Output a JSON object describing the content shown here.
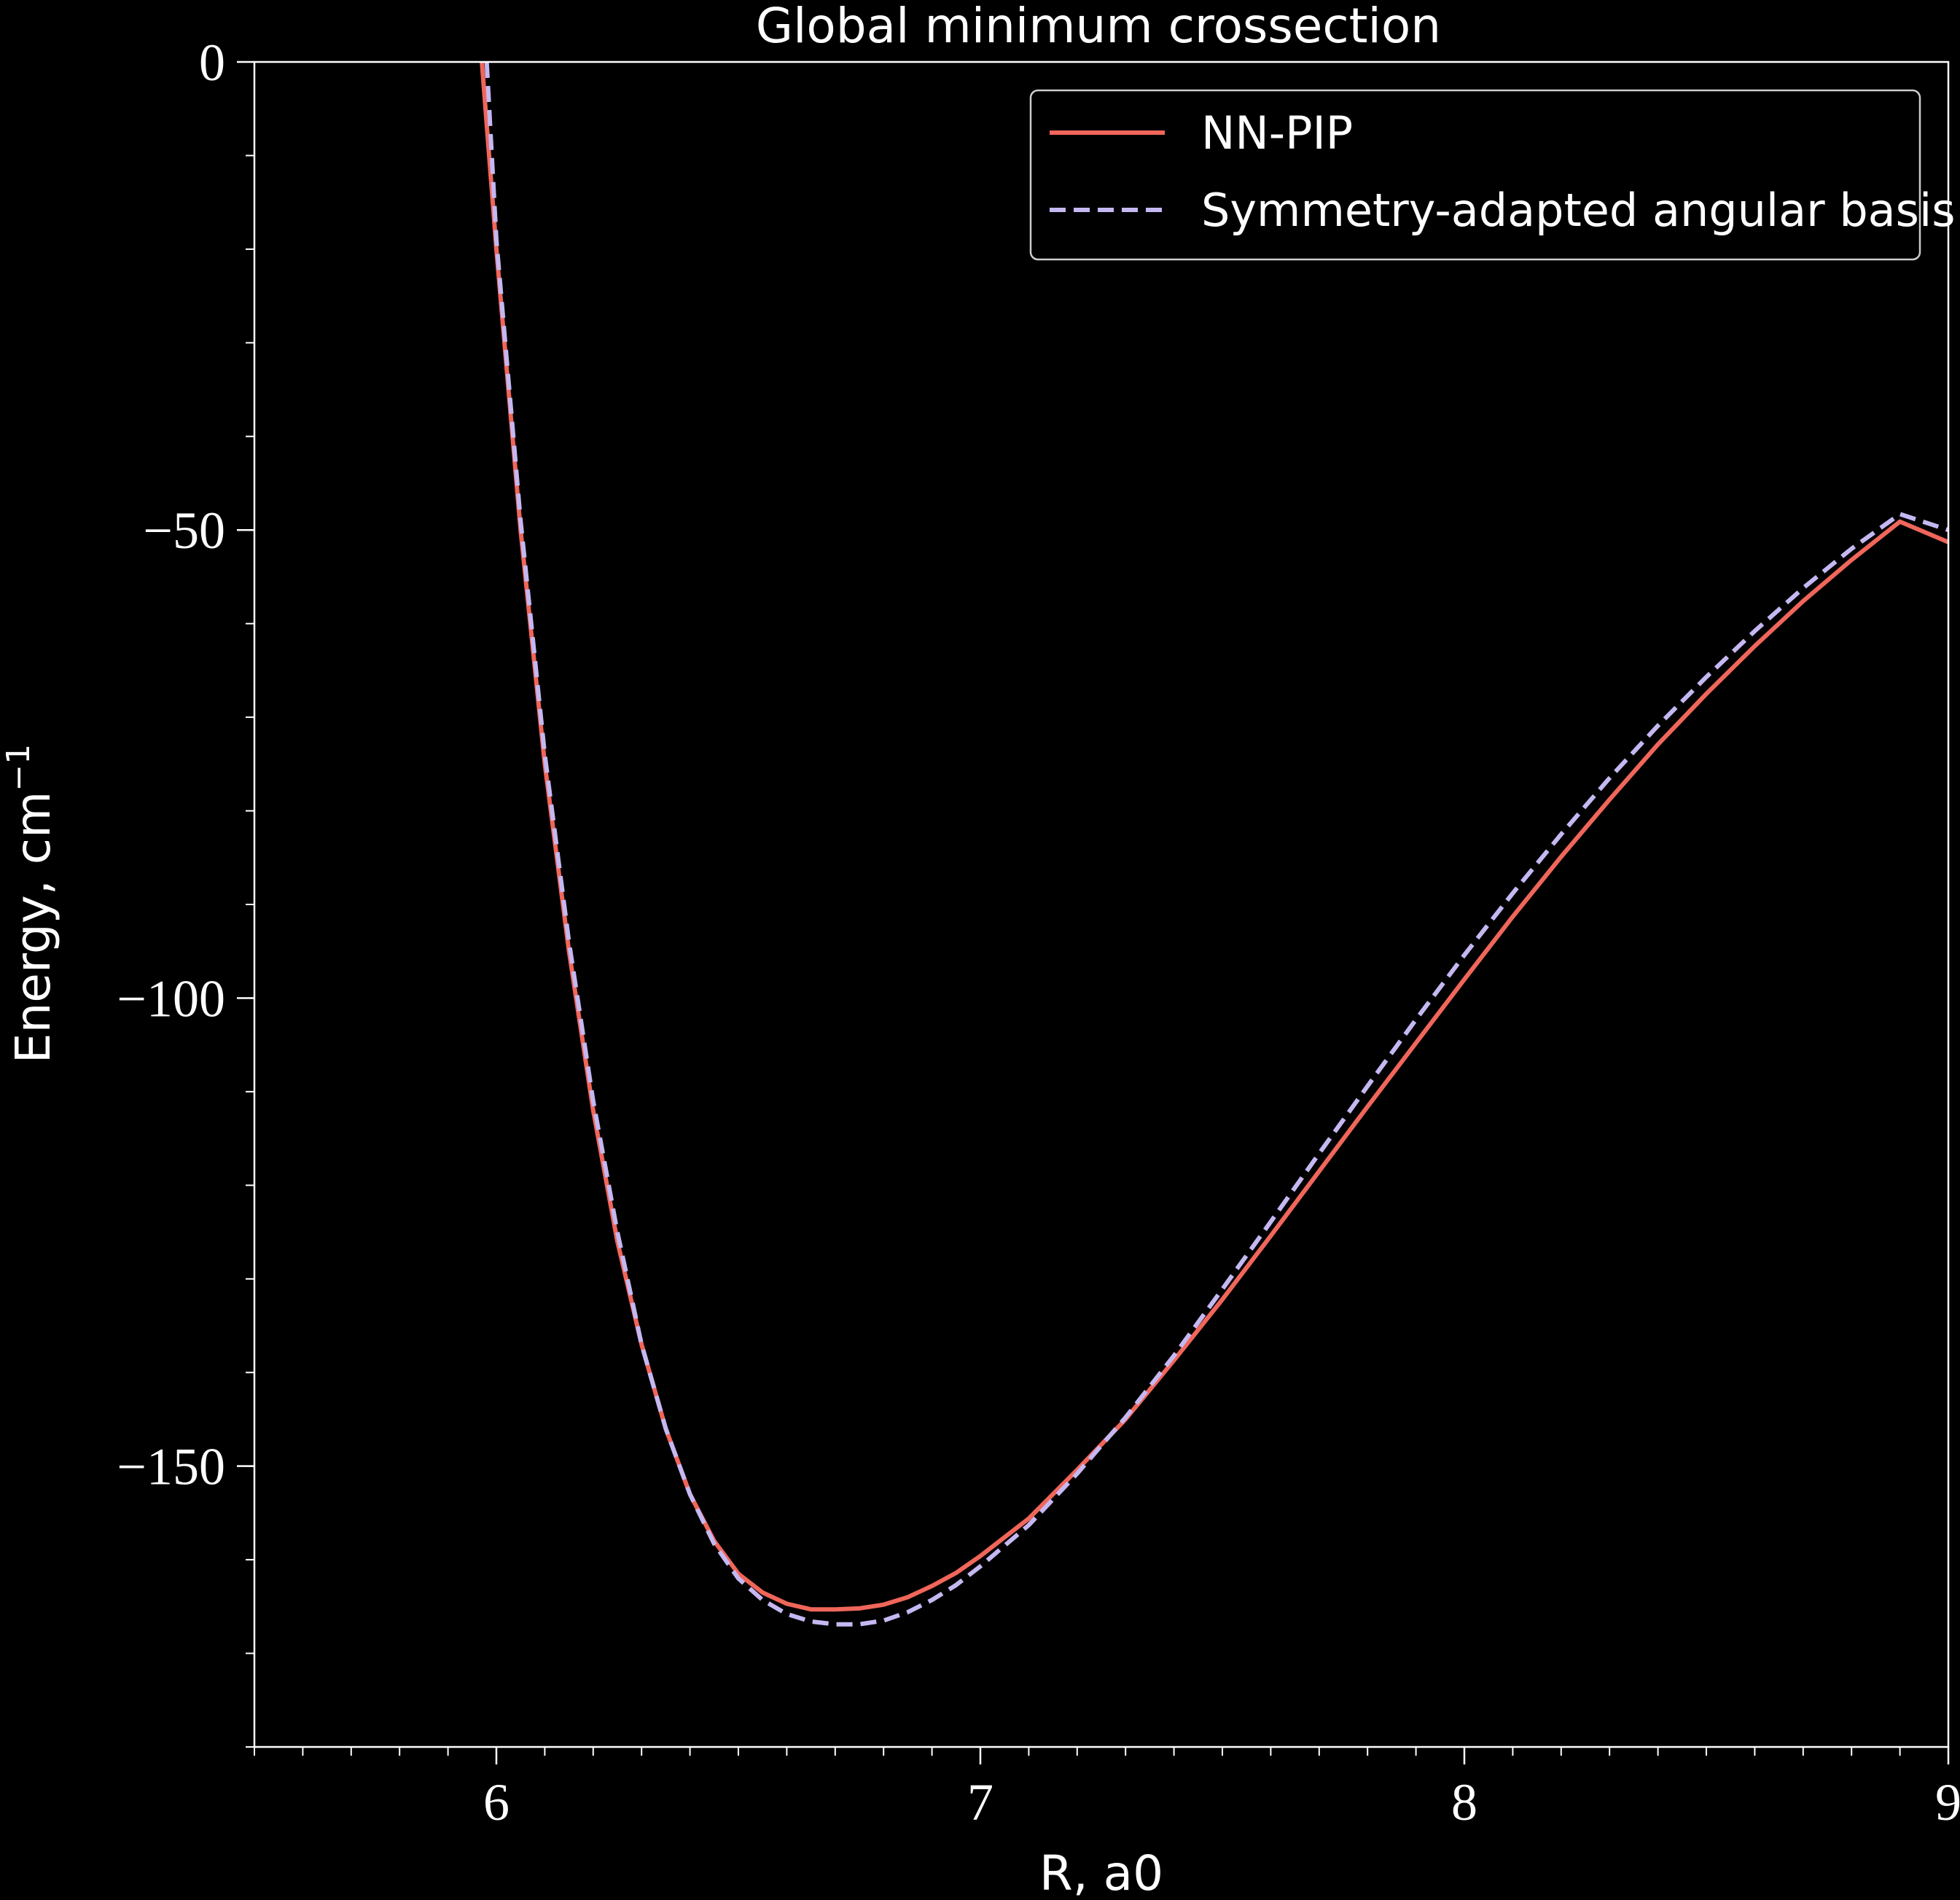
{
  "chart_data": {
    "type": "line",
    "title": "Global minimum crossection",
    "xlabel": "R, a0",
    "ylabel": "Energy, cm",
    "ylabel_superscript": "−1",
    "xlim": [
      5.5,
      9.0
    ],
    "ylim": [
      -180,
      0
    ],
    "x_ticks": [
      6,
      7,
      8,
      9
    ],
    "x_tick_labels": [
      "6",
      "7",
      "8",
      "9"
    ],
    "y_ticks": [
      0,
      -50,
      -100,
      -150
    ],
    "y_tick_labels": [
      "0",
      "−50",
      "−100",
      "−150"
    ],
    "x_minor_step": 0.1,
    "y_minor_step": 10,
    "grid": false,
    "legend_position": "top-right",
    "background": "#000000",
    "series": [
      {
        "name": "NN-PIP",
        "color": "#f0665a",
        "style": "solid",
        "x": [
          5.97,
          6.0,
          6.05,
          6.1,
          6.15,
          6.2,
          6.25,
          6.3,
          6.35,
          6.4,
          6.45,
          6.5,
          6.55,
          6.6,
          6.65,
          6.7,
          6.75,
          6.8,
          6.85,
          6.9,
          6.95,
          7.0,
          7.1,
          7.2,
          7.3,
          7.4,
          7.5,
          7.6,
          7.7,
          7.8,
          7.9,
          8.0,
          8.1,
          8.2,
          8.3,
          8.4,
          8.5,
          8.6,
          8.7,
          8.8,
          8.9,
          9.0
        ],
        "y": [
          0,
          -20,
          -50,
          -75,
          -95,
          -112,
          -126,
          -137,
          -146,
          -153,
          -158,
          -161.5,
          -163.5,
          -164.7,
          -165.3,
          -165.3,
          -165.2,
          -164.8,
          -164,
          -162.8,
          -161.4,
          -159.6,
          -155.6,
          -150.4,
          -145.0,
          -138.7,
          -132.2,
          -125.4,
          -118.5,
          -111.6,
          -104.8,
          -98.0,
          -91.3,
          -84.9,
          -78.8,
          -72.9,
          -67.5,
          -62.4,
          -57.6,
          -53.2,
          -49.1,
          -51.3
        ]
      },
      {
        "name": "Symmetry-adapted angular basis",
        "color": "#c5b8f2",
        "style": "dashed",
        "x": [
          5.98,
          6.0,
          6.05,
          6.1,
          6.15,
          6.2,
          6.25,
          6.3,
          6.35,
          6.4,
          6.45,
          6.5,
          6.55,
          6.6,
          6.65,
          6.7,
          6.75,
          6.8,
          6.85,
          6.9,
          6.95,
          7.0,
          7.1,
          7.2,
          7.3,
          7.4,
          7.5,
          7.6,
          7.7,
          7.8,
          7.9,
          8.0,
          8.1,
          8.2,
          8.3,
          8.4,
          8.5,
          8.6,
          8.7,
          8.8,
          8.9,
          9.0
        ],
        "y": [
          0,
          -19,
          -49,
          -74,
          -94,
          -111,
          -125,
          -137,
          -146,
          -153,
          -158.3,
          -162,
          -164.3,
          -165.8,
          -166.6,
          -166.9,
          -166.9,
          -166.5,
          -165.6,
          -164.3,
          -162.7,
          -160.7,
          -156.3,
          -150.8,
          -144.8,
          -138.2,
          -131.1,
          -123.9,
          -116.6,
          -109.4,
          -102.3,
          -95.4,
          -88.8,
          -82.5,
          -76.5,
          -70.9,
          -65.7,
          -60.8,
          -56.2,
          -52.0,
          -48.3,
          -50.0
        ]
      }
    ]
  }
}
